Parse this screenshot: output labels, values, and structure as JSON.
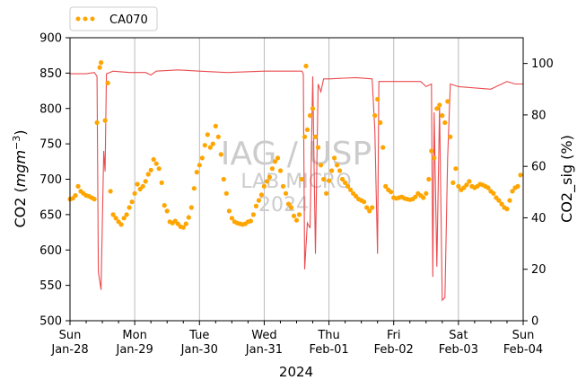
{
  "chart_data": {
    "type": "scatter",
    "title": "",
    "legend": {
      "label": "CA070",
      "placement": "top-left, outside plot"
    },
    "xlabel": "2024",
    "ylabel_left": "CO2 (mgm^-3)",
    "ylabel_right": "CO2_sig (%)",
    "x_ticks": [
      {
        "day": "Sun",
        "date": "Jan-28"
      },
      {
        "day": "Mon",
        "date": "Jan-29"
      },
      {
        "day": "Tue",
        "date": "Jan-30"
      },
      {
        "day": "Wed",
        "date": "Jan-31"
      },
      {
        "day": "Thu",
        "date": "Feb-01"
      },
      {
        "day": "Fri",
        "date": "Feb-02"
      },
      {
        "day": "Sat",
        "date": "Feb-03"
      },
      {
        "day": "Sun",
        "date": "Feb-04"
      }
    ],
    "x_range": [
      "2024-01-28 00:00",
      "2024-02-04 00:00"
    ],
    "ylim_left": [
      500,
      900
    ],
    "yticks_left": [
      500,
      550,
      600,
      650,
      700,
      750,
      800,
      850,
      900
    ],
    "ylim_right": [
      0,
      110
    ],
    "yticks_right": [
      0,
      20,
      40,
      60,
      80,
      100
    ],
    "grid": "vertical at day boundaries",
    "watermark": [
      "IAG / USP",
      "LAB MICRO",
      "2024"
    ],
    "colors": {
      "co2": "#FFA500",
      "co2_sig": "#E8373C",
      "right_axis_label": "#FF9999",
      "grid": "#BBBBBB",
      "watermark": "#CCCCCC"
    },
    "series": [
      {
        "name": "CA070",
        "axis": "left",
        "style": "dots",
        "points": [
          [
            "2024-01-28 00:00",
            672
          ],
          [
            "2024-01-28 01:00",
            673
          ],
          [
            "2024-01-28 02:00",
            677
          ],
          [
            "2024-01-28 03:00",
            690
          ],
          [
            "2024-01-28 04:00",
            683
          ],
          [
            "2024-01-28 05:00",
            680
          ],
          [
            "2024-01-28 06:00",
            677
          ],
          [
            "2024-01-28 07:00",
            676
          ],
          [
            "2024-01-28 08:00",
            674
          ],
          [
            "2024-01-28 09:00",
            672
          ],
          [
            "2024-01-28 10:00",
            780
          ],
          [
            "2024-01-28 11:00",
            858
          ],
          [
            "2024-01-28 11:30",
            865
          ],
          [
            "2024-01-28 13:00",
            783
          ],
          [
            "2024-01-28 14:00",
            836
          ],
          [
            "2024-01-28 15:00",
            683
          ],
          [
            "2024-01-28 16:00",
            650
          ],
          [
            "2024-01-28 17:00",
            645
          ],
          [
            "2024-01-28 18:00",
            640
          ],
          [
            "2024-01-28 19:00",
            636
          ],
          [
            "2024-01-28 20:00",
            645
          ],
          [
            "2024-01-28 21:00",
            650
          ],
          [
            "2024-01-28 22:00",
            660
          ],
          [
            "2024-01-28 23:00",
            668
          ],
          [
            "2024-01-29 00:00",
            680
          ],
          [
            "2024-01-29 01:00",
            693
          ],
          [
            "2024-01-29 02:00",
            686
          ],
          [
            "2024-01-29 03:00",
            690
          ],
          [
            "2024-01-29 04:00",
            697
          ],
          [
            "2024-01-29 05:00",
            707
          ],
          [
            "2024-01-29 06:00",
            713
          ],
          [
            "2024-01-29 07:00",
            728
          ],
          [
            "2024-01-29 08:00",
            722
          ],
          [
            "2024-01-29 09:00",
            715
          ],
          [
            "2024-01-29 10:00",
            695
          ],
          [
            "2024-01-29 11:00",
            663
          ],
          [
            "2024-01-29 12:00",
            655
          ],
          [
            "2024-01-29 13:00",
            640
          ],
          [
            "2024-01-29 14:00",
            638
          ],
          [
            "2024-01-29 15:00",
            641
          ],
          [
            "2024-01-29 16:00",
            637
          ],
          [
            "2024-01-29 17:00",
            633
          ],
          [
            "2024-01-29 18:00",
            632
          ],
          [
            "2024-01-29 19:00",
            637
          ],
          [
            "2024-01-29 20:00",
            646
          ],
          [
            "2024-01-29 21:00",
            660
          ],
          [
            "2024-01-29 22:00",
            687
          ],
          [
            "2024-01-29 23:00",
            710
          ],
          [
            "2024-01-30 00:00",
            720
          ],
          [
            "2024-01-30 01:00",
            730
          ],
          [
            "2024-01-30 02:00",
            748
          ],
          [
            "2024-01-30 03:00",
            763
          ],
          [
            "2024-01-30 04:00",
            745
          ],
          [
            "2024-01-30 05:00",
            750
          ],
          [
            "2024-01-30 06:00",
            775
          ],
          [
            "2024-01-30 07:00",
            760
          ],
          [
            "2024-01-30 08:00",
            735
          ],
          [
            "2024-01-30 09:00",
            700
          ],
          [
            "2024-01-30 10:00",
            680
          ],
          [
            "2024-01-30 11:00",
            655
          ],
          [
            "2024-01-30 12:00",
            645
          ],
          [
            "2024-01-30 13:00",
            640
          ],
          [
            "2024-01-30 14:00",
            638
          ],
          [
            "2024-01-30 15:00",
            637
          ],
          [
            "2024-01-30 16:00",
            636
          ],
          [
            "2024-01-30 17:00",
            637
          ],
          [
            "2024-01-30 18:00",
            640
          ],
          [
            "2024-01-30 19:00",
            641
          ],
          [
            "2024-01-30 20:00",
            650
          ],
          [
            "2024-01-30 21:00",
            662
          ],
          [
            "2024-01-30 22:00",
            670
          ],
          [
            "2024-01-30 23:00",
            678
          ],
          [
            "2024-01-31 00:00",
            690
          ],
          [
            "2024-01-31 01:00",
            697
          ],
          [
            "2024-01-31 02:00",
            703
          ],
          [
            "2024-01-31 03:00",
            715
          ],
          [
            "2024-01-31 04:00",
            725
          ],
          [
            "2024-01-31 05:00",
            730
          ],
          [
            "2024-01-31 06:00",
            712
          ],
          [
            "2024-01-31 07:00",
            690
          ],
          [
            "2024-01-31 08:00",
            680
          ],
          [
            "2024-01-31 09:00",
            665
          ],
          [
            "2024-01-31 10:00",
            660
          ],
          [
            "2024-01-31 11:00",
            648
          ],
          [
            "2024-01-31 12:00",
            642
          ],
          [
            "2024-01-31 13:00",
            650
          ],
          [
            "2024-01-31 14:00",
            700
          ],
          [
            "2024-01-31 15:00",
            760
          ],
          [
            "2024-01-31 15:30",
            860
          ],
          [
            "2024-01-31 16:00",
            770
          ],
          [
            "2024-01-31 17:00",
            790
          ],
          [
            "2024-01-31 18:00",
            800
          ],
          [
            "2024-01-31 19:00",
            760
          ],
          [
            "2024-01-31 20:00",
            745
          ],
          [
            "2024-01-31 21:00",
            720
          ],
          [
            "2024-01-31 22:00",
            700
          ],
          [
            "2024-01-31 23:00",
            680
          ],
          [
            "2024-02-01 00:00",
            698
          ],
          [
            "2024-02-01 01:00",
            712
          ],
          [
            "2024-02-01 02:00",
            730
          ],
          [
            "2024-02-01 03:00",
            720
          ],
          [
            "2024-02-01 04:00",
            712
          ],
          [
            "2024-02-01 05:00",
            700
          ],
          [
            "2024-02-01 06:00",
            695
          ],
          [
            "2024-02-01 07:00",
            690
          ],
          [
            "2024-02-01 08:00",
            685
          ],
          [
            "2024-02-01 09:00",
            680
          ],
          [
            "2024-02-01 10:00",
            676
          ],
          [
            "2024-02-01 11:00",
            672
          ],
          [
            "2024-02-01 12:00",
            670
          ],
          [
            "2024-02-01 13:00",
            668
          ],
          [
            "2024-02-01 14:00",
            660
          ],
          [
            "2024-02-01 15:00",
            655
          ],
          [
            "2024-02-01 16:00",
            660
          ],
          [
            "2024-02-01 17:00",
            790
          ],
          [
            "2024-02-01 18:00",
            813
          ],
          [
            "2024-02-01 19:00",
            780
          ],
          [
            "2024-02-01 20:00",
            745
          ],
          [
            "2024-02-01 21:00",
            690
          ],
          [
            "2024-02-01 22:00",
            685
          ],
          [
            "2024-02-01 23:00",
            682
          ],
          [
            "2024-02-02 00:00",
            674
          ],
          [
            "2024-02-02 01:00",
            673
          ],
          [
            "2024-02-02 02:00",
            674
          ],
          [
            "2024-02-02 03:00",
            675
          ],
          [
            "2024-02-02 04:00",
            673
          ],
          [
            "2024-02-02 05:00",
            672
          ],
          [
            "2024-02-02 06:00",
            671
          ],
          [
            "2024-02-02 07:00",
            672
          ],
          [
            "2024-02-02 08:00",
            675
          ],
          [
            "2024-02-02 09:00",
            680
          ],
          [
            "2024-02-02 10:00",
            677
          ],
          [
            "2024-02-02 11:00",
            674
          ],
          [
            "2024-02-02 12:00",
            680
          ],
          [
            "2024-02-02 13:00",
            700
          ],
          [
            "2024-02-02 14:00",
            740
          ],
          [
            "2024-02-02 15:00",
            730
          ],
          [
            "2024-02-02 16:00",
            800
          ],
          [
            "2024-02-02 17:00",
            805
          ],
          [
            "2024-02-02 18:00",
            790
          ],
          [
            "2024-02-02 19:00",
            780
          ],
          [
            "2024-02-02 20:00",
            810
          ],
          [
            "2024-02-02 21:00",
            760
          ],
          [
            "2024-02-02 22:00",
            695
          ],
          [
            "2024-02-02 23:00",
            715
          ],
          [
            "2024-02-03 00:00",
            690
          ],
          [
            "2024-02-03 01:00",
            685
          ],
          [
            "2024-02-03 02:00",
            688
          ],
          [
            "2024-02-03 03:00",
            692
          ],
          [
            "2024-02-03 04:00",
            697
          ],
          [
            "2024-02-03 05:00",
            690
          ],
          [
            "2024-02-03 06:00",
            688
          ],
          [
            "2024-02-03 07:00",
            690
          ],
          [
            "2024-02-03 08:00",
            693
          ],
          [
            "2024-02-03 09:00",
            692
          ],
          [
            "2024-02-03 10:00",
            690
          ],
          [
            "2024-02-03 11:00",
            688
          ],
          [
            "2024-02-03 12:00",
            683
          ],
          [
            "2024-02-03 13:00",
            680
          ],
          [
            "2024-02-03 14:00",
            674
          ],
          [
            "2024-02-03 15:00",
            670
          ],
          [
            "2024-02-03 16:00",
            665
          ],
          [
            "2024-02-03 17:00",
            660
          ],
          [
            "2024-02-03 18:00",
            658
          ],
          [
            "2024-02-03 19:00",
            670
          ],
          [
            "2024-02-03 20:00",
            683
          ],
          [
            "2024-02-03 21:00",
            688
          ],
          [
            "2024-02-03 22:00",
            690
          ],
          [
            "2024-02-03 23:00",
            706
          ]
        ]
      },
      {
        "name": "CO2_sig",
        "axis": "right",
        "style": "line",
        "points": [
          [
            "2024-01-28 00:00",
            96
          ],
          [
            "2024-01-28 06:00",
            96
          ],
          [
            "2024-01-28 09:00",
            96.5
          ],
          [
            "2024-01-28 10:00",
            95
          ],
          [
            "2024-01-28 10:30",
            19
          ],
          [
            "2024-01-28 11:30",
            12
          ],
          [
            "2024-01-28 12:30",
            66
          ],
          [
            "2024-01-28 13:00",
            58
          ],
          [
            "2024-01-28 13:30",
            96
          ],
          [
            "2024-01-28 16:00",
            97
          ],
          [
            "2024-01-28 22:00",
            96.5
          ],
          [
            "2024-01-29 04:00",
            96.5
          ],
          [
            "2024-01-29 06:00",
            95.5
          ],
          [
            "2024-01-29 08:00",
            97
          ],
          [
            "2024-01-29 16:00",
            97.5
          ],
          [
            "2024-01-30 00:00",
            97
          ],
          [
            "2024-01-30 10:00",
            96.5
          ],
          [
            "2024-01-31 00:00",
            97
          ],
          [
            "2024-01-31 14:00",
            97
          ],
          [
            "2024-01-31 14:30",
            96
          ],
          [
            "2024-01-31 15:00",
            20
          ],
          [
            "2024-01-31 16:00",
            38
          ],
          [
            "2024-01-31 17:00",
            36
          ],
          [
            "2024-01-31 18:00",
            95
          ],
          [
            "2024-01-31 19:00",
            26
          ],
          [
            "2024-01-31 20:00",
            92
          ],
          [
            "2024-01-31 21:00",
            89
          ],
          [
            "2024-01-31 22:00",
            94
          ],
          [
            "2024-02-01 00:00",
            94
          ],
          [
            "2024-02-01 10:00",
            94.5
          ],
          [
            "2024-02-01 16:00",
            94
          ],
          [
            "2024-02-01 17:00",
            74
          ],
          [
            "2024-02-01 18:00",
            26
          ],
          [
            "2024-02-01 18:30",
            93
          ],
          [
            "2024-02-01 20:00",
            93
          ],
          [
            "2024-02-02 10:00",
            93
          ],
          [
            "2024-02-02 12:00",
            91
          ],
          [
            "2024-02-02 14:00",
            92
          ],
          [
            "2024-02-02 14:30",
            17
          ],
          [
            "2024-02-02 15:00",
            81
          ],
          [
            "2024-02-02 16:00",
            21
          ],
          [
            "2024-02-02 17:00",
            83
          ],
          [
            "2024-02-02 18:00",
            8
          ],
          [
            "2024-02-02 19:00",
            9
          ],
          [
            "2024-02-02 20:00",
            63
          ],
          [
            "2024-02-02 21:00",
            92
          ],
          [
            "2024-02-03 00:00",
            91
          ],
          [
            "2024-02-03 12:00",
            90
          ],
          [
            "2024-02-03 14:00",
            91
          ],
          [
            "2024-02-03 18:00",
            93
          ],
          [
            "2024-02-03 21:00",
            92
          ],
          [
            "2024-02-04 00:00",
            92
          ]
        ]
      }
    ]
  }
}
